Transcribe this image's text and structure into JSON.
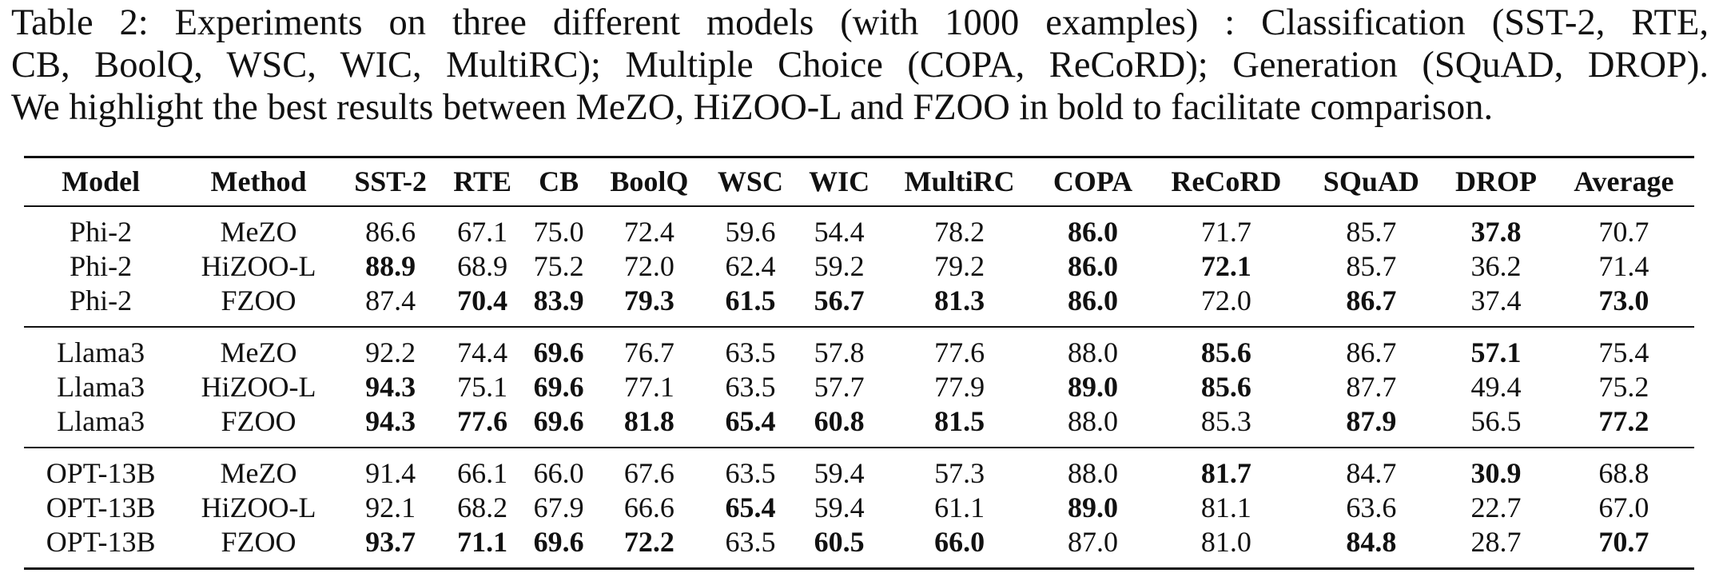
{
  "caption": {
    "lines": [
      "Table 2: Experiments on three different models (with 1000 examples) : Classification (SST-2, RTE,",
      "CB, BoolQ, WSC, WIC, MultiRC); Multiple Choice (COPA, ReCoRD); Generation (SQuAD, DROP).",
      "We highlight the best results between MeZO, HiZOO-L and FZOO in bold to facilitate comparison."
    ]
  },
  "table": {
    "columns": [
      "Model",
      "Method",
      "SST-2",
      "RTE",
      "CB",
      "BoolQ",
      "WSC",
      "WIC",
      "MultiRC",
      "COPA",
      "ReCoRD",
      "SQuAD",
      "DROP",
      "Average"
    ],
    "groups": [
      {
        "rows": [
          {
            "model": "Phi-2",
            "method": "MeZO",
            "values": [
              "86.6",
              "67.1",
              "75.0",
              "72.4",
              "59.6",
              "54.4",
              "78.2",
              "86.0",
              "71.7",
              "85.7",
              "37.8",
              "70.7"
            ],
            "bold": [
              false,
              false,
              false,
              false,
              false,
              false,
              false,
              true,
              false,
              false,
              true,
              false
            ]
          },
          {
            "model": "Phi-2",
            "method": "HiZOO-L",
            "values": [
              "88.9",
              "68.9",
              "75.2",
              "72.0",
              "62.4",
              "59.2",
              "79.2",
              "86.0",
              "72.1",
              "85.7",
              "36.2",
              "71.4"
            ],
            "bold": [
              true,
              false,
              false,
              false,
              false,
              false,
              false,
              true,
              true,
              false,
              false,
              false
            ]
          },
          {
            "model": "Phi-2",
            "method": "FZOO",
            "values": [
              "87.4",
              "70.4",
              "83.9",
              "79.3",
              "61.5",
              "56.7",
              "81.3",
              "86.0",
              "72.0",
              "86.7",
              "37.4",
              "73.0"
            ],
            "bold": [
              false,
              true,
              true,
              true,
              true,
              true,
              true,
              true,
              false,
              true,
              false,
              true
            ]
          }
        ]
      },
      {
        "rows": [
          {
            "model": "Llama3",
            "method": "MeZO",
            "values": [
              "92.2",
              "74.4",
              "69.6",
              "76.7",
              "63.5",
              "57.8",
              "77.6",
              "88.0",
              "85.6",
              "86.7",
              "57.1",
              "75.4"
            ],
            "bold": [
              false,
              false,
              true,
              false,
              false,
              false,
              false,
              false,
              true,
              false,
              true,
              false
            ]
          },
          {
            "model": "Llama3",
            "method": "HiZOO-L",
            "values": [
              "94.3",
              "75.1",
              "69.6",
              "77.1",
              "63.5",
              "57.7",
              "77.9",
              "89.0",
              "85.6",
              "87.7",
              "49.4",
              "75.2"
            ],
            "bold": [
              true,
              false,
              true,
              false,
              false,
              false,
              false,
              true,
              true,
              false,
              false,
              false
            ]
          },
          {
            "model": "Llama3",
            "method": "FZOO",
            "values": [
              "94.3",
              "77.6",
              "69.6",
              "81.8",
              "65.4",
              "60.8",
              "81.5",
              "88.0",
              "85.3",
              "87.9",
              "56.5",
              "77.2"
            ],
            "bold": [
              true,
              true,
              true,
              true,
              true,
              true,
              true,
              false,
              false,
              true,
              false,
              true
            ]
          }
        ]
      },
      {
        "rows": [
          {
            "model": "OPT-13B",
            "method": "MeZO",
            "values": [
              "91.4",
              "66.1",
              "66.0",
              "67.6",
              "63.5",
              "59.4",
              "57.3",
              "88.0",
              "81.7",
              "84.7",
              "30.9",
              "68.8"
            ],
            "bold": [
              false,
              false,
              false,
              false,
              false,
              false,
              false,
              false,
              true,
              false,
              true,
              false
            ]
          },
          {
            "model": "OPT-13B",
            "method": "HiZOO-L",
            "values": [
              "92.1",
              "68.2",
              "67.9",
              "66.6",
              "65.4",
              "59.4",
              "61.1",
              "89.0",
              "81.1",
              "63.6",
              "22.7",
              "67.0"
            ],
            "bold": [
              false,
              false,
              false,
              false,
              true,
              false,
              false,
              true,
              false,
              false,
              false,
              false
            ]
          },
          {
            "model": "OPT-13B",
            "method": "FZOO",
            "values": [
              "93.7",
              "71.1",
              "69.6",
              "72.2",
              "63.5",
              "60.5",
              "66.0",
              "87.0",
              "81.0",
              "84.8",
              "28.7",
              "70.7"
            ],
            "bold": [
              true,
              true,
              true,
              true,
              false,
              true,
              true,
              false,
              false,
              true,
              false,
              true
            ]
          }
        ]
      }
    ]
  }
}
